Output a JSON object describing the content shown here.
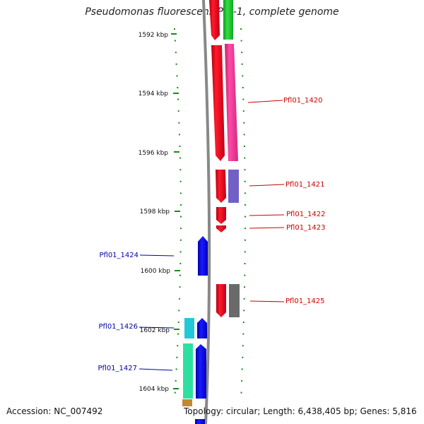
{
  "title": "Pseudomonas fluorescens Pf0-1, complete genome",
  "footer": {
    "accession": "Accession: NC_007492",
    "summary": "Topology: circular; Length: 6,438,405 bp; Genes: 5,816"
  },
  "ruler": {
    "ticks": [
      "1592 kbp",
      "1594 kbp",
      "1596 kbp",
      "1598 kbp",
      "1600 kbp",
      "1602 kbp",
      "1604 kbp"
    ]
  },
  "genes_plus": [
    {
      "label": "Pfl01_1420",
      "color": "#e8102a",
      "cds_color": "#ff3ca0"
    },
    {
      "label": "Pfl01_1421",
      "color": "#e8102a",
      "cds_color": "#7060c8"
    },
    {
      "label": "Pfl01_1422",
      "color": "#e8102a"
    },
    {
      "label": "Pfl01_1423",
      "color": "#e8102a"
    },
    {
      "label": "Pfl01_1425",
      "color": "#e8102a",
      "cds_color": "#6a6a6a"
    }
  ],
  "genes_minus": [
    {
      "label": "Pfl01_1424",
      "color": "#1010ee"
    },
    {
      "label": "Pfl01_1426",
      "color": "#1010ee",
      "cds_color": "#22c8d8"
    },
    {
      "label": "Pfl01_1427",
      "color": "#1010ee",
      "cds_color": "#2ee0a0"
    }
  ],
  "colors": {
    "label_plus": "#cc0000",
    "label_minus": "#0000aa",
    "tick": "#1a8a1a",
    "backbone": "#888888",
    "partial_green": "#22cc33"
  }
}
